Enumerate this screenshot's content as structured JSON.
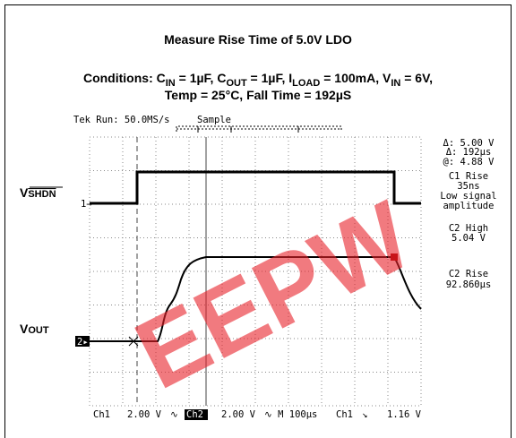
{
  "header": {
    "title": "Measure Rise Time of 5.0V LDO",
    "conditions_line1": [
      "Conditions: C",
      "IN",
      " = 1µF, C",
      "OUT",
      " = 1µF, I",
      "LOAD",
      " = 100mA, V",
      "IN",
      " = 6V,"
    ],
    "conditions_line2": "Temp = 25°C, Fall Time = 192µS"
  },
  "scope": {
    "status": "Tek Run: 50.0MS/s",
    "mode": "Sample",
    "readouts": [
      "Δ: 5.00 V",
      "Δ: 192µs",
      "@: 4.88 V",
      "C1 Rise",
      "35ns",
      "Low signal",
      "amplitude",
      "C2 High",
      "5.04 V",
      "C2 Rise",
      "92.860µs"
    ],
    "bottom": [
      "Ch1",
      "2.00 V",
      "∿",
      "Ch2",
      "2.00 V",
      "∿ M 100µs",
      "Ch1",
      "↘",
      "1.16 V"
    ],
    "markers": [
      "1→",
      "2▸"
    ]
  },
  "labels": {
    "vshdn_v": "V",
    "vshdn_sub": "SHDN",
    "vout_v": "V",
    "vout_sub": "OUT"
  },
  "watermark": "EEPW"
}
